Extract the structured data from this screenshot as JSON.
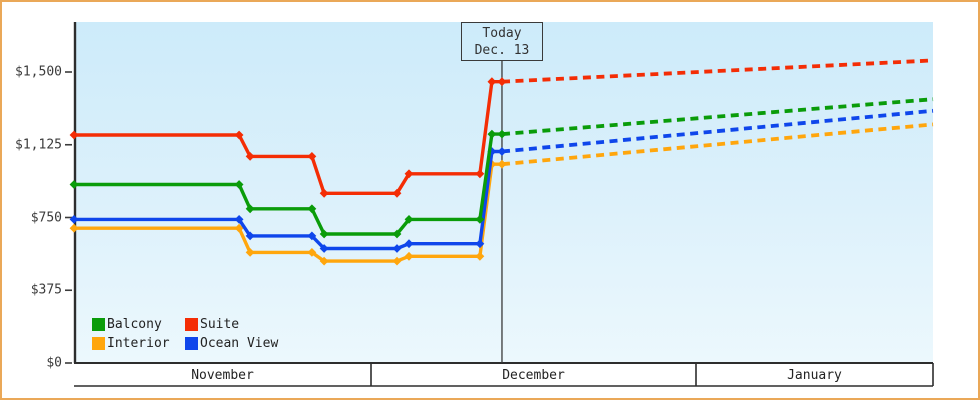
{
  "frame": {
    "border_color": "#eaa858",
    "background": "#ffffff",
    "plot_bg_top": "#cdebfa",
    "plot_bg_bottom": "#ecf8fd",
    "axis_color": "#2d2d2d",
    "text_color": "#3b3b3b"
  },
  "chart_data": {
    "type": "line",
    "title": "",
    "x_axis": {
      "unit": "months since Nov 1 (0 = Nov 1, 1 = Dec 1, 2 = Jan 1, 3 = Feb 1)",
      "range": [
        0,
        3
      ],
      "month_labels": [
        "November",
        "December",
        "January"
      ]
    },
    "y_axis": {
      "range": [
        0,
        1755
      ],
      "grid": false,
      "ticks": [
        {
          "value": 0,
          "label": "$0"
        },
        {
          "value": 375,
          "label": "$375"
        },
        {
          "value": 750,
          "label": "$750"
        },
        {
          "value": 1125,
          "label": "$1,125"
        },
        {
          "value": 1500,
          "label": "$1,500"
        }
      ]
    },
    "today_marker": {
      "u": 1.403,
      "label": "Today",
      "date": "Dec. 13"
    },
    "series": [
      {
        "name": "Interior",
        "color": "#ffa60d",
        "history": [
          [
            0,
            695
          ],
          [
            0.556,
            695
          ],
          [
            0.593,
            570
          ],
          [
            0.801,
            570
          ],
          [
            0.842,
            525
          ],
          [
            1.08,
            525
          ],
          [
            1.117,
            550
          ],
          [
            1.335,
            550
          ],
          [
            1.372,
            1025
          ],
          [
            1.403,
            1025
          ]
        ],
        "forecast": [
          [
            1.403,
            1025
          ],
          [
            3,
            1230
          ]
        ]
      },
      {
        "name": "Ocean View",
        "color": "#0f46eb",
        "history": [
          [
            0,
            740
          ],
          [
            0.556,
            740
          ],
          [
            0.593,
            655
          ],
          [
            0.801,
            655
          ],
          [
            0.842,
            590
          ],
          [
            1.08,
            590
          ],
          [
            1.117,
            615
          ],
          [
            1.335,
            615
          ],
          [
            1.372,
            1090
          ],
          [
            1.403,
            1090
          ]
        ],
        "forecast": [
          [
            1.403,
            1090
          ],
          [
            3,
            1300
          ]
        ]
      },
      {
        "name": "Balcony",
        "color": "#0a9c0a",
        "history": [
          [
            0,
            920
          ],
          [
            0.556,
            920
          ],
          [
            0.593,
            795
          ],
          [
            0.801,
            795
          ],
          [
            0.842,
            665
          ],
          [
            1.08,
            665
          ],
          [
            1.117,
            740
          ],
          [
            1.335,
            740
          ],
          [
            1.372,
            1180
          ],
          [
            1.403,
            1180
          ]
        ],
        "forecast": [
          [
            1.403,
            1180
          ],
          [
            3,
            1360
          ]
        ]
      },
      {
        "name": "Suite",
        "color": "#f42d05",
        "history": [
          [
            0,
            1175
          ],
          [
            0.556,
            1175
          ],
          [
            0.593,
            1065
          ],
          [
            0.801,
            1065
          ],
          [
            0.842,
            875
          ],
          [
            1.08,
            875
          ],
          [
            1.117,
            975
          ],
          [
            1.335,
            975
          ],
          [
            1.372,
            1450
          ],
          [
            1.403,
            1450
          ]
        ],
        "forecast": [
          [
            1.403,
            1450
          ],
          [
            3,
            1560
          ]
        ]
      }
    ],
    "legend": {
      "position": "bottom-left",
      "rows": [
        [
          "Balcony",
          "Suite"
        ],
        [
          "Interior",
          "Ocean View"
        ]
      ]
    }
  }
}
